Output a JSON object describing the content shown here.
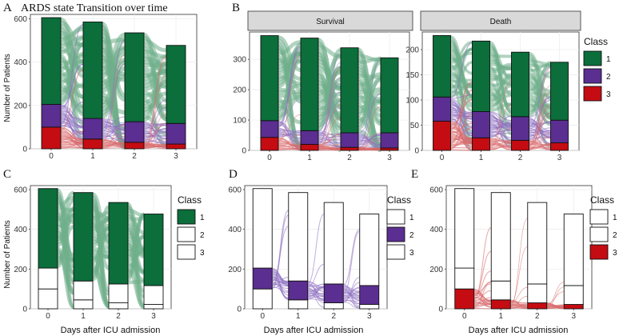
{
  "figure": {
    "title": "ARDS state Transition over time",
    "ylabel": "Number of Patients",
    "xlabel": "Days after ICU admission",
    "facet_survival": "Survival",
    "facet_death": "Death",
    "legend_title": "Class",
    "colors": {
      "1": "#0b6e3b",
      "2": "#5b2e91",
      "3": "#c40c12",
      "flow1": "#6fae8a",
      "flow2": "#8f72c2",
      "flow3": "#d9686a"
    }
  },
  "chart_data": [
    {
      "panel": "A",
      "type": "bar",
      "title": "ARDS state Transition over time",
      "categories": [
        "0",
        "1",
        "2",
        "3"
      ],
      "ylabel": "Number of Patients",
      "ylim": [
        0,
        620
      ],
      "series": [
        {
          "name": "1",
          "values": [
            400,
            445,
            410,
            360
          ]
        },
        {
          "name": "2",
          "values": [
            105,
            95,
            95,
            95
          ]
        },
        {
          "name": "3",
          "values": [
            100,
            45,
            30,
            22
          ]
        }
      ],
      "yticks": [
        "0",
        "200",
        "400",
        "600"
      ],
      "highlight": [
        "1",
        "2",
        "3"
      ],
      "legend": false
    },
    {
      "panel": "B",
      "facet": "Survival",
      "type": "bar",
      "categories": [
        "0",
        "1",
        "2",
        "3"
      ],
      "ylim": [
        0,
        390
      ],
      "series": [
        {
          "name": "1",
          "values": [
            280,
            305,
            280,
            247
          ]
        },
        {
          "name": "2",
          "values": [
            55,
            45,
            48,
            50
          ]
        },
        {
          "name": "3",
          "values": [
            43,
            20,
            10,
            8
          ]
        }
      ],
      "yticks": [
        "0",
        "100",
        "200",
        "300"
      ],
      "highlight": [
        "1",
        "2",
        "3"
      ],
      "legend": false
    },
    {
      "panel": "B",
      "facet": "Death",
      "type": "bar",
      "categories": [
        "0",
        "1",
        "2",
        "3"
      ],
      "ylim": [
        0,
        235
      ],
      "series": [
        {
          "name": "1",
          "values": [
            122,
            140,
            128,
            115
          ]
        },
        {
          "name": "2",
          "values": [
            48,
            52,
            47,
            45
          ]
        },
        {
          "name": "3",
          "values": [
            58,
            25,
            20,
            15
          ]
        }
      ],
      "yticks": [
        "0",
        "50",
        "100",
        "150",
        "200"
      ],
      "highlight": [
        "1",
        "2",
        "3"
      ],
      "legend": true
    },
    {
      "panel": "C",
      "type": "bar",
      "categories": [
        "0",
        "1",
        "2",
        "3"
      ],
      "xlabel": "Days after ICU admission",
      "ylabel": "Number of Patients",
      "ylim": [
        0,
        620
      ],
      "series": [
        {
          "name": "1",
          "values": [
            400,
            445,
            410,
            360
          ]
        },
        {
          "name": "2",
          "values": [
            105,
            95,
            95,
            95
          ]
        },
        {
          "name": "3",
          "values": [
            100,
            45,
            30,
            22
          ]
        }
      ],
      "yticks": [
        "0",
        "200",
        "400",
        "600"
      ],
      "highlight": [
        "1"
      ],
      "legend": true
    },
    {
      "panel": "D",
      "type": "bar",
      "categories": [
        "0",
        "1",
        "2",
        "3"
      ],
      "xlabel": "Days after ICU admission",
      "ylim": [
        0,
        620
      ],
      "series": [
        {
          "name": "1",
          "values": [
            400,
            445,
            410,
            360
          ]
        },
        {
          "name": "2",
          "values": [
            105,
            95,
            95,
            95
          ]
        },
        {
          "name": "3",
          "values": [
            100,
            45,
            30,
            22
          ]
        }
      ],
      "yticks": [
        "0",
        "200",
        "400",
        "600"
      ],
      "highlight": [
        "2"
      ],
      "legend": true
    },
    {
      "panel": "E",
      "type": "bar",
      "categories": [
        "0",
        "1",
        "2",
        "3"
      ],
      "xlabel": "Days after ICU admission",
      "ylim": [
        0,
        620
      ],
      "series": [
        {
          "name": "1",
          "values": [
            400,
            445,
            410,
            360
          ]
        },
        {
          "name": "2",
          "values": [
            105,
            95,
            95,
            95
          ]
        },
        {
          "name": "3",
          "values": [
            100,
            45,
            30,
            22
          ]
        }
      ],
      "yticks": [
        "0",
        "200",
        "400",
        "600"
      ],
      "highlight": [
        "3"
      ],
      "legend": true
    }
  ],
  "legend": {
    "labels": [
      "1",
      "2",
      "3"
    ]
  }
}
